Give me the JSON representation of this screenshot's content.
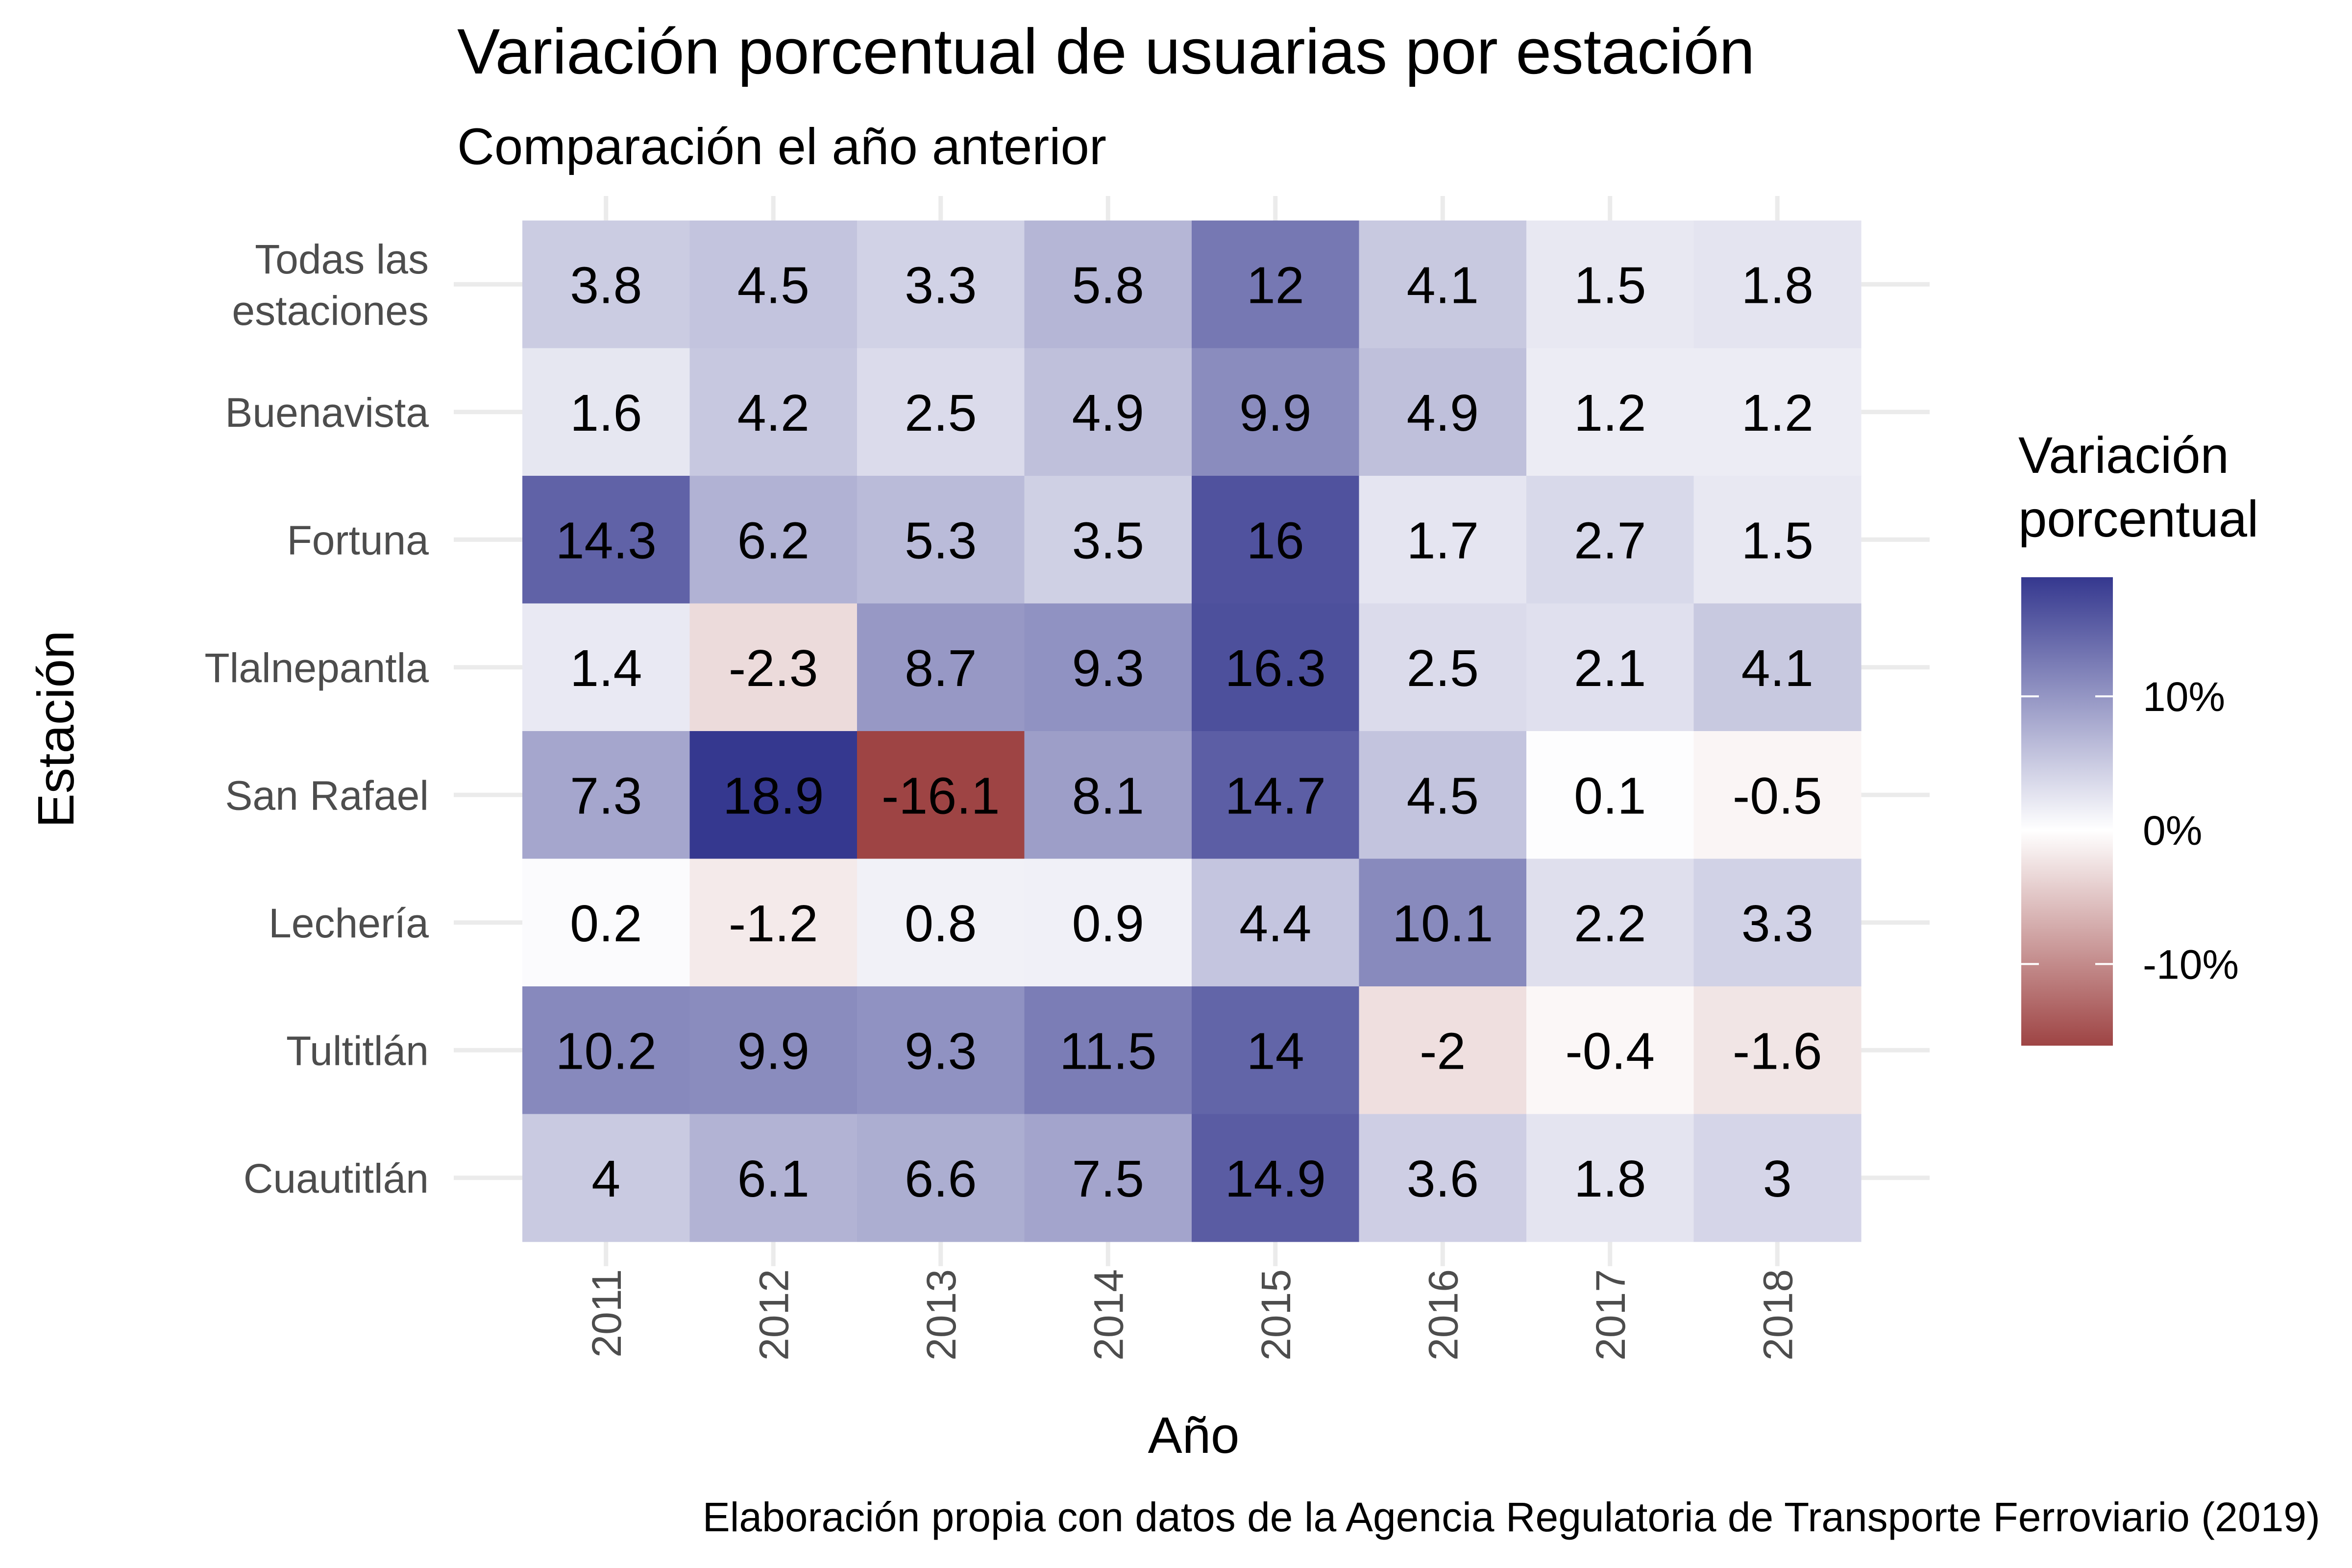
{
  "chart_data": {
    "type": "heatmap",
    "title": "Variación porcentual de usuarias por estación",
    "subtitle": "Comparación el año anterior",
    "xlabel": "Año",
    "ylabel": "Estación",
    "caption": "Elaboración propia con datos de la Agencia Regulatoria de Transporte Ferroviario (2019)",
    "x": [
      "2011",
      "2012",
      "2013",
      "2014",
      "2015",
      "2016",
      "2017",
      "2018"
    ],
    "y": [
      "Todas las\nestaciones",
      "Buenavista",
      "Fortuna",
      "Tlalnepantla",
      "San Rafael",
      "Lechería",
      "Tultitlán",
      "Cuautitlán"
    ],
    "values": [
      [
        "3.8",
        "4.5",
        "3.3",
        "5.8",
        "12",
        "4.1",
        "1.5",
        "1.8"
      ],
      [
        "1.6",
        "4.2",
        "2.5",
        "4.9",
        "9.9",
        "4.9",
        "1.2",
        "1.2"
      ],
      [
        "14.3",
        "6.2",
        "5.3",
        "3.5",
        "16",
        "1.7",
        "2.7",
        "1.5"
      ],
      [
        "1.4",
        "-2.3",
        "8.7",
        "9.3",
        "16.3",
        "2.5",
        "2.1",
        "4.1"
      ],
      [
        "7.3",
        "18.9",
        "-16.1",
        "8.1",
        "14.7",
        "4.5",
        "0.1",
        "-0.5"
      ],
      [
        "0.2",
        "-1.2",
        "0.8",
        "0.9",
        "4.4",
        "10.1",
        "2.2",
        "3.3"
      ],
      [
        "10.2",
        "9.9",
        "9.3",
        "11.5",
        "14",
        "-2",
        "-0.4",
        "-1.6"
      ],
      [
        "4",
        "6.1",
        "6.6",
        "7.5",
        "14.9",
        "3.6",
        "1.8",
        "3"
      ]
    ],
    "legend": {
      "title": "Variación\nporcentual",
      "breaks": [
        10,
        0,
        -10
      ],
      "labels": [
        "10%",
        "0%",
        "-10%"
      ],
      "limits": [
        -16.1,
        18.9
      ],
      "placement": "right"
    },
    "colors": {
      "low": "#9E4444",
      "mid": "#FFFFFF",
      "high": "#35388F",
      "grid": "#EBEBEB",
      "text": "#000000",
      "axis_text": "#4D4D4D"
    },
    "grid": true
  }
}
